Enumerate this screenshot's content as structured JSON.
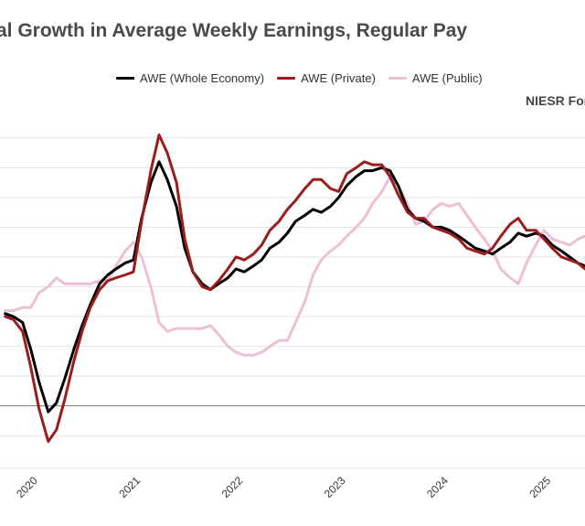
{
  "chart_data": {
    "type": "line",
    "title": "al Growth in Average Weekly Earnings, Regular Pay",
    "annotation": "NIESR Fore",
    "xlabel": "",
    "ylabel": "",
    "grid": true,
    "legend_position": "top",
    "x_ticks": [
      "2020",
      "2021",
      "2022",
      "2023",
      "2024",
      "2025"
    ],
    "x_tick_values": [
      2020.0,
      2021.0,
      2022.0,
      2023.0,
      2024.0,
      2025.0
    ],
    "xlim": [
      2019.7,
      2025.4
    ],
    "ylim": [
      -2.1,
      9.7
    ],
    "y_zero_line": 0,
    "series": [
      {
        "name": "AWE (Whole Economy)",
        "color": "#000000",
        "x": [
          2019.75,
          2019.83,
          2019.92,
          2020.0,
          2020.08,
          2020.17,
          2020.25,
          2020.33,
          2020.42,
          2020.5,
          2020.58,
          2020.67,
          2020.75,
          2020.83,
          2020.92,
          2021.0,
          2021.08,
          2021.17,
          2021.25,
          2021.33,
          2021.42,
          2021.5,
          2021.58,
          2021.67,
          2021.75,
          2021.83,
          2021.92,
          2022.0,
          2022.08,
          2022.17,
          2022.25,
          2022.33,
          2022.42,
          2022.5,
          2022.58,
          2022.67,
          2022.75,
          2022.83,
          2022.92,
          2023.0,
          2023.08,
          2023.17,
          2023.25,
          2023.33,
          2023.42,
          2023.5,
          2023.58,
          2023.67,
          2023.75,
          2023.83,
          2023.92,
          2024.0,
          2024.08,
          2024.17,
          2024.25,
          2024.33,
          2024.42,
          2024.5,
          2024.58,
          2024.67,
          2024.75,
          2024.83,
          2024.92,
          2025.0,
          2025.08,
          2025.17,
          2025.25,
          2025.33,
          2025.4
        ],
        "values": [
          3.1,
          3.0,
          2.8,
          1.9,
          0.8,
          -0.2,
          0.1,
          0.9,
          1.9,
          2.7,
          3.4,
          4.1,
          4.4,
          4.6,
          4.8,
          4.9,
          6.3,
          7.5,
          8.2,
          7.6,
          6.7,
          5.3,
          4.5,
          4.1,
          3.9,
          4.1,
          4.3,
          4.6,
          4.5,
          4.7,
          4.9,
          5.3,
          5.5,
          5.8,
          6.2,
          6.4,
          6.6,
          6.5,
          6.7,
          7.0,
          7.4,
          7.7,
          7.9,
          7.9,
          8.0,
          7.9,
          7.4,
          6.6,
          6.3,
          6.2,
          6.0,
          6.0,
          5.9,
          5.7,
          5.5,
          5.3,
          5.2,
          5.1,
          5.3,
          5.5,
          5.8,
          5.7,
          5.8,
          5.7,
          5.4,
          5.2,
          5.0,
          4.8,
          4.7
        ]
      },
      {
        "name": "AWE (Private)",
        "color": "#9b1c1c",
        "x": [
          2019.75,
          2019.83,
          2019.92,
          2020.0,
          2020.08,
          2020.17,
          2020.25,
          2020.33,
          2020.42,
          2020.5,
          2020.58,
          2020.67,
          2020.75,
          2020.83,
          2020.92,
          2021.0,
          2021.08,
          2021.17,
          2021.25,
          2021.33,
          2021.42,
          2021.5,
          2021.58,
          2021.67,
          2021.75,
          2021.83,
          2021.92,
          2022.0,
          2022.08,
          2022.17,
          2022.25,
          2022.33,
          2022.42,
          2022.5,
          2022.58,
          2022.67,
          2022.75,
          2022.83,
          2022.92,
          2023.0,
          2023.08,
          2023.17,
          2023.25,
          2023.33,
          2023.42,
          2023.5,
          2023.58,
          2023.67,
          2023.75,
          2023.83,
          2023.92,
          2024.0,
          2024.08,
          2024.17,
          2024.25,
          2024.33,
          2024.42,
          2024.5,
          2024.58,
          2024.67,
          2024.75,
          2024.83,
          2024.92,
          2025.0,
          2025.08,
          2025.17,
          2025.25,
          2025.33,
          2025.4
        ],
        "values": [
          3.0,
          2.9,
          2.5,
          1.3,
          -0.1,
          -1.2,
          -0.8,
          0.2,
          1.5,
          2.5,
          3.3,
          3.9,
          4.2,
          4.3,
          4.4,
          4.5,
          6.2,
          7.9,
          9.1,
          8.5,
          7.5,
          5.6,
          4.5,
          4.0,
          3.9,
          4.2,
          4.6,
          5.0,
          4.9,
          5.1,
          5.4,
          5.9,
          6.2,
          6.6,
          6.9,
          7.3,
          7.6,
          7.6,
          7.3,
          7.2,
          7.8,
          8.0,
          8.2,
          8.1,
          8.1,
          7.7,
          7.1,
          6.5,
          6.3,
          6.3,
          6.0,
          5.9,
          5.8,
          5.6,
          5.3,
          5.2,
          5.1,
          5.3,
          5.7,
          6.1,
          6.3,
          5.9,
          5.9,
          5.6,
          5.3,
          5.0,
          4.9,
          4.8,
          4.6
        ]
      },
      {
        "name": "AWE (Public)",
        "color": "#ecbfd7",
        "x": [
          2019.75,
          2019.83,
          2019.92,
          2020.0,
          2020.08,
          2020.17,
          2020.25,
          2020.33,
          2020.42,
          2020.5,
          2020.58,
          2020.67,
          2020.75,
          2020.83,
          2020.92,
          2021.0,
          2021.08,
          2021.17,
          2021.25,
          2021.33,
          2021.42,
          2021.5,
          2021.58,
          2021.67,
          2021.75,
          2021.83,
          2021.92,
          2022.0,
          2022.08,
          2022.17,
          2022.25,
          2022.33,
          2022.42,
          2022.5,
          2022.58,
          2022.67,
          2022.75,
          2022.83,
          2022.92,
          2023.0,
          2023.08,
          2023.17,
          2023.25,
          2023.33,
          2023.42,
          2023.5,
          2023.58,
          2023.67,
          2023.75,
          2023.83,
          2023.92,
          2024.0,
          2024.08,
          2024.17,
          2024.25,
          2024.33,
          2024.42,
          2024.5,
          2024.58,
          2024.67,
          2024.75,
          2024.83,
          2024.92,
          2025.0,
          2025.08,
          2025.17,
          2025.25,
          2025.33,
          2025.4
        ],
        "values": [
          3.2,
          3.2,
          3.3,
          3.3,
          3.8,
          4.0,
          4.3,
          4.1,
          4.1,
          4.1,
          4.1,
          4.2,
          4.2,
          4.7,
          5.2,
          5.5,
          5.0,
          4.0,
          2.8,
          2.5,
          2.6,
          2.6,
          2.6,
          2.6,
          2.7,
          2.4,
          2.0,
          1.8,
          1.7,
          1.7,
          1.8,
          2.0,
          2.2,
          2.2,
          2.8,
          3.5,
          4.4,
          4.9,
          5.2,
          5.4,
          5.7,
          6.0,
          6.3,
          6.8,
          7.2,
          7.7,
          7.4,
          6.8,
          6.1,
          6.2,
          6.6,
          6.8,
          6.7,
          6.8,
          6.4,
          6.0,
          5.6,
          5.2,
          4.6,
          4.3,
          4.1,
          4.8,
          5.4,
          5.9,
          5.6,
          5.5,
          5.4,
          5.6,
          5.7
        ]
      }
    ]
  }
}
